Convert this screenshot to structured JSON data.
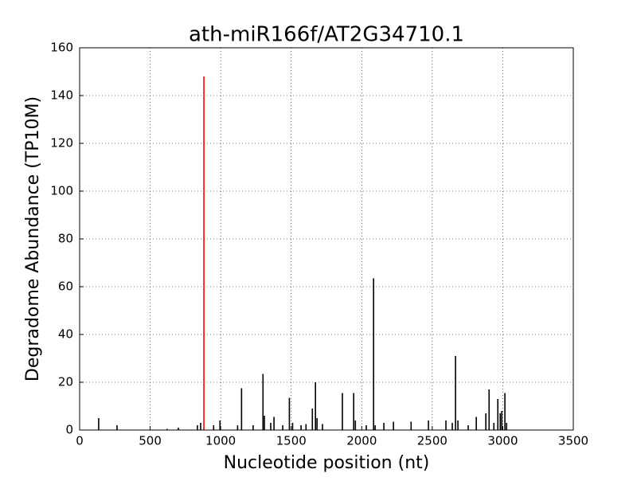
{
  "chart_data": {
    "type": "bar",
    "title": "ath-miR166f/AT2G34710.1",
    "x_label": "Nucleotide position (nt)",
    "y_label": "Degradome Abundance (TP10M)",
    "xlim": [
      0,
      3500
    ],
    "xticks": [
      0,
      500,
      1000,
      1500,
      2000,
      2500,
      3000,
      3500
    ],
    "ylim": [
      0,
      160
    ],
    "yticks": [
      0,
      20,
      40,
      60,
      80,
      100,
      120,
      140,
      160
    ],
    "grid": true,
    "series": [
      {
        "color": "#000000",
        "x": [
          135,
          265,
          620,
          700,
          835,
          858,
          950,
          995,
          1120,
          1148,
          1230,
          1300,
          1310,
          1355,
          1378,
          1440,
          1487,
          1510,
          1570,
          1605,
          1650,
          1672,
          1683,
          1722,
          1863,
          1943,
          1955,
          2032,
          2084,
          2095,
          2157,
          2225,
          2350,
          2473,
          2597,
          2642,
          2665,
          2682,
          2755,
          2812,
          2880,
          2903,
          2937,
          2965,
          2982,
          2993,
          3015,
          3027
        ],
        "values": [
          5,
          2,
          0.5,
          1,
          2,
          3,
          2,
          4,
          2,
          17.5,
          2,
          23.5,
          6,
          3,
          5.5,
          2,
          13.5,
          3,
          2,
          2.5,
          9,
          20,
          5,
          2.5,
          15.5,
          15.5,
          4,
          2,
          63.5,
          2,
          3,
          3.5,
          3.5,
          4,
          4,
          3,
          31,
          4,
          2,
          5.5,
          7,
          17,
          3,
          13,
          7,
          8,
          15.5,
          3
        ]
      },
      {
        "color": "#ff0000",
        "x": [
          881
        ],
        "values": [
          148
        ]
      }
    ]
  }
}
